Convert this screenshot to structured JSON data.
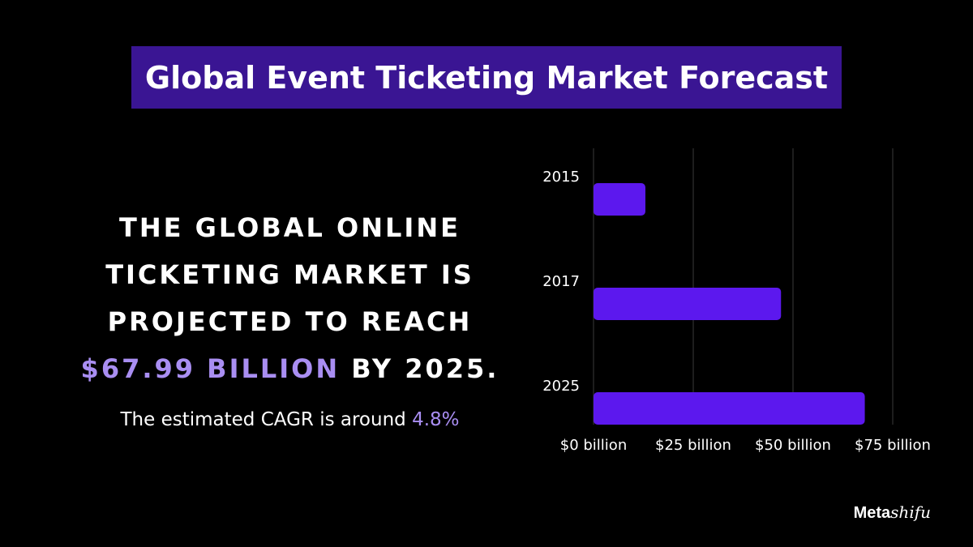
{
  "title": "Global Event Ticketing Market Forecast",
  "headline": {
    "line1": "The global online",
    "line2": "ticketing market is",
    "line3": "projected to reach",
    "highlight": "$67.99 billion",
    "after_highlight": " by 2025."
  },
  "cagr": {
    "text": "The estimated CAGR is around ",
    "value": "4.8%"
  },
  "logo": {
    "part1": "Meta",
    "part2": "shifu"
  },
  "colors": {
    "background": "#000000",
    "title_box": "#3a1593",
    "bar": "#5c18ee",
    "accent_text": "#a98ef2",
    "gridline": "#3a3a3a"
  },
  "chart_data": {
    "type": "bar",
    "orientation": "horizontal",
    "categories": [
      "2015",
      "2017",
      "2025"
    ],
    "values": [
      13,
      47,
      68
    ],
    "xlim": [
      0,
      75
    ],
    "xticks": [
      0,
      25,
      50,
      75
    ],
    "xtick_labels": [
      "$0 billion",
      "$25 billion",
      "$50 billion",
      "$75 billion"
    ],
    "grid": true,
    "title": "",
    "xlabel": "",
    "ylabel": ""
  }
}
